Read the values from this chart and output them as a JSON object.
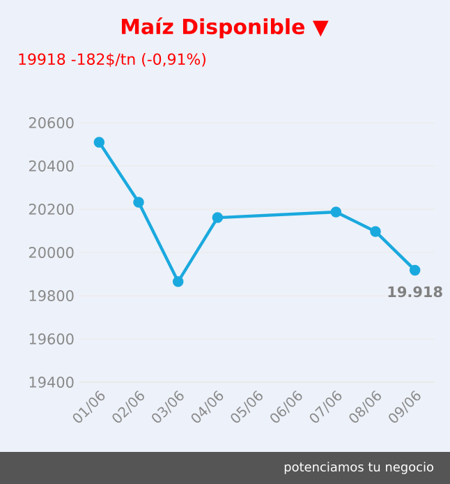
{
  "chart_data": {
    "type": "line",
    "title": "Maíz Disponible ▼",
    "subtitle": "19918 -182$/tn (-0,91%)",
    "categories": [
      "01/06",
      "02/06",
      "03/06",
      "04/06",
      "05/06",
      "06/06",
      "07/06",
      "08/06",
      "09/06"
    ],
    "series": [
      {
        "color": "#1aa9de",
        "values": [
          20510,
          20232,
          19865,
          20161,
          null,
          null,
          20187,
          20097,
          19918
        ],
        "value_labels": [
          null,
          null,
          null,
          null,
          null,
          null,
          null,
          null,
          "19.918"
        ]
      }
    ],
    "ylim": [
      19400,
      20600
    ],
    "yticks": [
      19400,
      19600,
      19800,
      20000,
      20200,
      20400,
      20600
    ],
    "grid": "y",
    "marker": "circle",
    "line_style": "solid",
    "annotations": [
      "potenciamos tu negocio"
    ]
  }
}
